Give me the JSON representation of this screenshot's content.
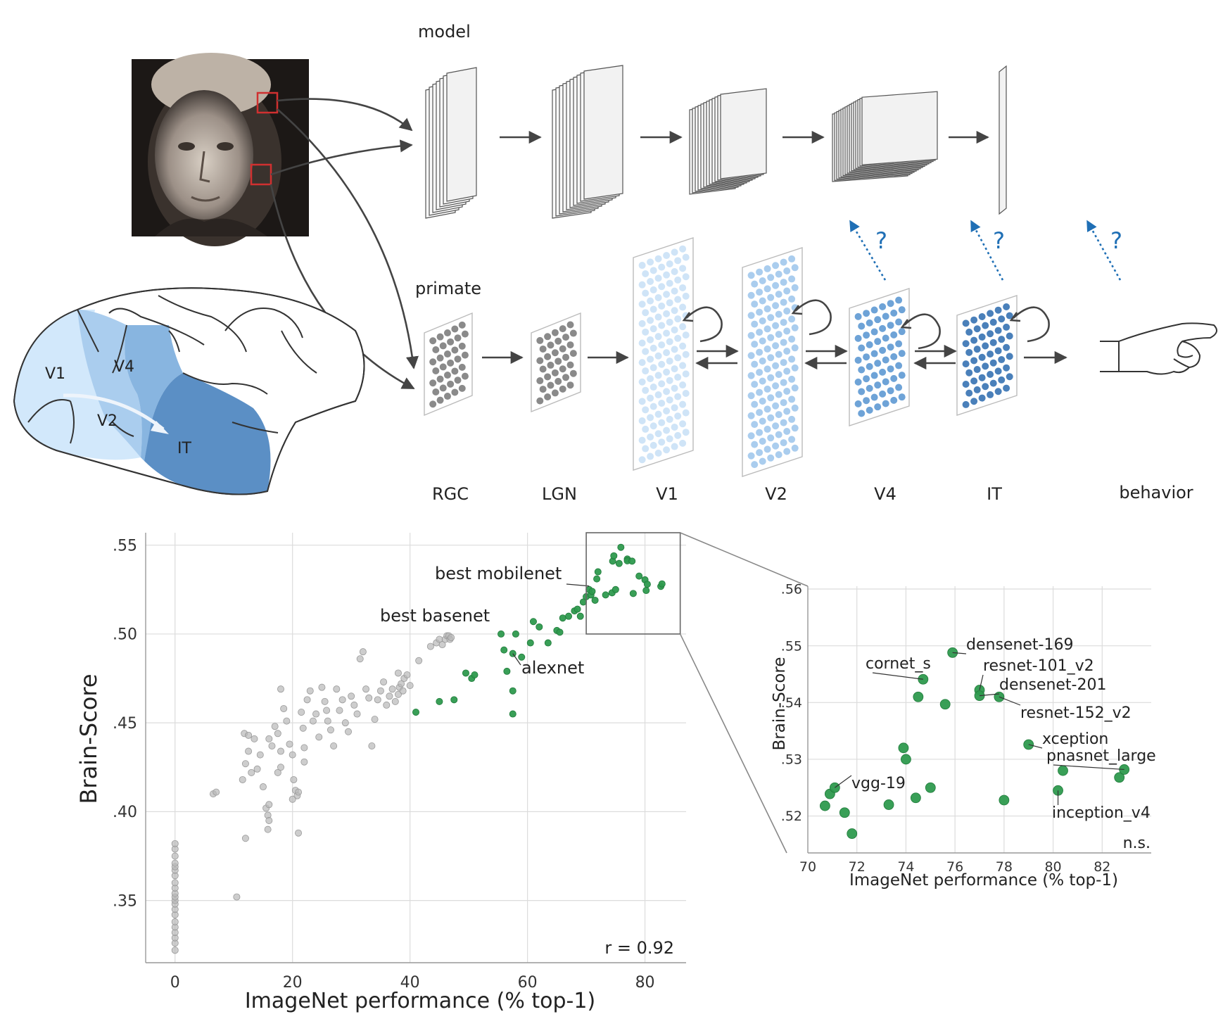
{
  "diagram": {
    "model_label": "model",
    "primate_label": "primate",
    "stages": [
      "RGC",
      "LGN",
      "V1",
      "V2",
      "V4",
      "IT",
      "behavior"
    ],
    "brain_labels": [
      "V1",
      "V4",
      "V2",
      "IT"
    ],
    "question_mark": "?",
    "colors": {
      "accent_blue": "#1f6fb5",
      "pale_blue": "#cfe4f7",
      "mid_blue": "#8fb9e0",
      "dark_blue": "#5a8ec4",
      "green": "#2e9a4e",
      "gray_point": "#b8b8b8",
      "red_box": "#d03030"
    }
  },
  "chart_data": [
    {
      "type": "scatter",
      "xlabel": "ImageNet performance (% top-1)",
      "ylabel": "Brain-Score",
      "xlim": [
        -5,
        87
      ],
      "ylim": [
        0.315,
        0.557
      ],
      "xticks": [
        0,
        20,
        40,
        60,
        80
      ],
      "xtick_labels": [
        "0",
        "20",
        "40",
        "60",
        "80"
      ],
      "yticks": [
        0.35,
        0.4,
        0.45,
        0.5,
        0.55
      ],
      "ytick_labels": [
        ".35",
        ".40",
        ".45",
        ".50",
        ".55"
      ],
      "grid": true,
      "stat_text": "r = 0.92",
      "annotations": [
        {
          "text": "best mobilenet",
          "x": 70.5,
          "y": 0.527
        },
        {
          "text": "best basenet",
          "x": 47,
          "y": 0.498
        },
        {
          "text": "alexnet",
          "x": 57.5,
          "y": 0.489
        }
      ],
      "series": [
        {
          "color": "#b8b8b8",
          "points": [
            [
              0,
              0.322
            ],
            [
              0,
              0.326
            ],
            [
              0,
              0.329
            ],
            [
              0,
              0.332
            ],
            [
              0,
              0.335
            ],
            [
              0,
              0.338
            ],
            [
              0,
              0.342
            ],
            [
              0,
              0.345
            ],
            [
              0,
              0.348
            ],
            [
              0,
              0.35
            ],
            [
              0,
              0.352
            ],
            [
              0,
              0.354
            ],
            [
              0,
              0.357
            ],
            [
              0,
              0.36
            ],
            [
              0,
              0.364
            ],
            [
              0,
              0.367
            ],
            [
              0,
              0.369
            ],
            [
              0,
              0.371
            ],
            [
              0,
              0.375
            ],
            [
              0,
              0.379
            ],
            [
              0,
              0.382
            ],
            [
              10.5,
              0.352
            ],
            [
              6.5,
              0.41
            ],
            [
              7,
              0.411
            ],
            [
              12,
              0.385
            ],
            [
              11.5,
              0.418
            ],
            [
              12,
              0.427
            ],
            [
              12.5,
              0.434
            ],
            [
              13,
              0.422
            ],
            [
              11.8,
              0.444
            ],
            [
              12.5,
              0.443
            ],
            [
              13.5,
              0.441
            ],
            [
              14.5,
              0.432
            ],
            [
              14,
              0.424
            ],
            [
              15,
              0.414
            ],
            [
              15.5,
              0.402
            ],
            [
              15.8,
              0.398
            ],
            [
              16,
              0.395
            ],
            [
              15.8,
              0.39
            ],
            [
              16,
              0.404
            ],
            [
              16.5,
              0.437
            ],
            [
              16,
              0.441
            ],
            [
              17,
              0.448
            ],
            [
              17.5,
              0.444
            ],
            [
              18,
              0.434
            ],
            [
              17.5,
              0.422
            ],
            [
              18,
              0.425
            ],
            [
              18,
              0.469
            ],
            [
              18.5,
              0.458
            ],
            [
              19,
              0.451
            ],
            [
              19.5,
              0.438
            ],
            [
              20,
              0.432
            ],
            [
              20.2,
              0.418
            ],
            [
              20.5,
              0.412
            ],
            [
              20.8,
              0.409
            ],
            [
              21,
              0.411
            ],
            [
              20,
              0.407
            ],
            [
              21,
              0.388
            ],
            [
              21.5,
              0.456
            ],
            [
              21.8,
              0.447
            ],
            [
              22,
              0.436
            ],
            [
              22,
              0.428
            ],
            [
              22.5,
              0.463
            ],
            [
              23,
              0.468
            ],
            [
              23.5,
              0.451
            ],
            [
              24,
              0.455
            ],
            [
              24.5,
              0.442
            ],
            [
              25,
              0.47
            ],
            [
              25.5,
              0.462
            ],
            [
              25.8,
              0.457
            ],
            [
              26,
              0.451
            ],
            [
              26.5,
              0.446
            ],
            [
              27,
              0.437
            ],
            [
              27.5,
              0.469
            ],
            [
              28,
              0.457
            ],
            [
              28.5,
              0.463
            ],
            [
              29,
              0.45
            ],
            [
              29.5,
              0.445
            ],
            [
              30,
              0.465
            ],
            [
              30.5,
              0.46
            ],
            [
              31,
              0.455
            ],
            [
              31.5,
              0.486
            ],
            [
              32,
              0.49
            ],
            [
              32.5,
              0.469
            ],
            [
              33,
              0.464
            ],
            [
              33.5,
              0.437
            ],
            [
              34,
              0.452
            ],
            [
              34.5,
              0.463
            ],
            [
              35,
              0.468
            ],
            [
              35.5,
              0.473
            ],
            [
              36,
              0.46
            ],
            [
              36.5,
              0.465
            ],
            [
              37,
              0.469
            ],
            [
              37.5,
              0.462
            ],
            [
              38,
              0.466
            ],
            [
              38.2,
              0.47
            ],
            [
              38.5,
              0.472
            ],
            [
              38.8,
              0.468
            ],
            [
              38,
              0.478
            ],
            [
              39,
              0.475
            ],
            [
              39.5,
              0.477
            ],
            [
              40,
              0.471
            ],
            [
              41.5,
              0.485
            ],
            [
              43.5,
              0.493
            ],
            [
              44.5,
              0.495
            ],
            [
              45,
              0.497
            ],
            [
              45.5,
              0.494
            ],
            [
              46,
              0.497
            ],
            [
              46.3,
              0.499
            ],
            [
              46.6,
              0.499
            ],
            [
              46.8,
              0.497
            ],
            [
              47,
              0.498
            ]
          ]
        },
        {
          "color": "#2e9a4e",
          "points": [
            [
              41,
              0.456
            ],
            [
              45,
              0.462
            ],
            [
              47.5,
              0.463
            ],
            [
              49.5,
              0.478
            ],
            [
              50.5,
              0.475
            ],
            [
              51,
              0.477
            ],
            [
              55.5,
              0.5
            ],
            [
              56,
              0.491
            ],
            [
              56.5,
              0.479
            ],
            [
              57.5,
              0.468
            ],
            [
              57.5,
              0.455
            ],
            [
              57.5,
              0.489
            ],
            [
              58,
              0.5
            ],
            [
              59,
              0.487
            ],
            [
              60.5,
              0.495
            ],
            [
              61,
              0.507
            ],
            [
              62,
              0.504
            ],
            [
              63.5,
              0.495
            ],
            [
              65,
              0.502
            ],
            [
              65.5,
              0.501
            ],
            [
              66,
              0.509
            ],
            [
              67,
              0.51
            ],
            [
              68,
              0.513
            ],
            [
              68.5,
              0.514
            ],
            [
              69,
              0.51
            ],
            [
              69.5,
              0.518
            ],
            [
              70,
              0.521
            ],
            [
              70.5,
              0.525
            ],
            [
              70.8,
              0.522
            ],
            [
              71,
              0.524
            ],
            [
              71.5,
              0.519
            ],
            [
              71.8,
              0.531
            ],
            [
              72,
              0.535
            ],
            [
              73.3,
              0.522
            ],
            [
              74.4,
              0.5232
            ],
            [
              74.5,
              0.541
            ],
            [
              74.7,
              0.544
            ],
            [
              75,
              0.525
            ],
            [
              75.6,
              0.5397
            ],
            [
              75.9,
              0.5488
            ],
            [
              77,
              0.5422
            ],
            [
              77,
              0.5412
            ],
            [
              77.8,
              0.541
            ],
            [
              78,
              0.5228
            ],
            [
              79,
              0.5326
            ],
            [
              80,
              0.5305
            ],
            [
              80.2,
              0.5245
            ],
            [
              80.4,
              0.528
            ],
            [
              82.7,
              0.5268
            ],
            [
              82.9,
              0.5282
            ]
          ]
        }
      ]
    },
    {
      "type": "scatter",
      "xlabel": "ImageNet performance (% top-1)",
      "ylabel": "Brain-Score",
      "xlim": [
        70,
        84
      ],
      "ylim": [
        0.5135,
        0.5605
      ],
      "xticks": [
        70,
        72,
        74,
        76,
        78,
        80,
        82
      ],
      "xtick_labels": [
        "70",
        "72",
        "74",
        "76",
        "78",
        "80",
        "82"
      ],
      "yticks": [
        0.52,
        0.53,
        0.54,
        0.55,
        0.56
      ],
      "ytick_labels": [
        ".52",
        ".53",
        ".54",
        ".55",
        ".56"
      ],
      "grid": true,
      "stat_text": "n.s.",
      "annotations": [
        {
          "text": "densenet-169",
          "x": 75.9,
          "y": 0.5488
        },
        {
          "text": "cornet_s",
          "x": 74.7,
          "y": 0.5441
        },
        {
          "text": "resnet-101_v2",
          "x": 77.0,
          "y": 0.5422
        },
        {
          "text": "densenet-201",
          "x": 77.0,
          "y": 0.5412
        },
        {
          "text": "resnet-152_v2",
          "x": 77.8,
          "y": 0.541
        },
        {
          "text": "xception",
          "x": 79.0,
          "y": 0.5326
        },
        {
          "text": "pnasnet_large",
          "x": 82.9,
          "y": 0.5282
        },
        {
          "text": "vgg-19",
          "x": 71.1,
          "y": 0.525
        },
        {
          "text": "inception_v4",
          "x": 80.2,
          "y": 0.5245
        }
      ],
      "series": [
        {
          "color": "#2e9a4e",
          "points": [
            [
              70.7,
              0.5218
            ],
            [
              70.9,
              0.5239
            ],
            [
              71.1,
              0.525
            ],
            [
              71.5,
              0.5206
            ],
            [
              71.8,
              0.5169
            ],
            [
              73.3,
              0.522
            ],
            [
              73.9,
              0.532
            ],
            [
              74.0,
              0.53
            ],
            [
              74.4,
              0.5232
            ],
            [
              74.5,
              0.541
            ],
            [
              74.7,
              0.5441
            ],
            [
              75.0,
              0.525
            ],
            [
              75.6,
              0.5397
            ],
            [
              75.9,
              0.5488
            ],
            [
              77.0,
              0.5422
            ],
            [
              77.0,
              0.5412
            ],
            [
              77.8,
              0.541
            ],
            [
              78.0,
              0.5228
            ],
            [
              79.0,
              0.5326
            ],
            [
              80.2,
              0.5245
            ],
            [
              80.4,
              0.528
            ],
            [
              82.7,
              0.5268
            ],
            [
              82.9,
              0.5282
            ]
          ]
        }
      ]
    }
  ]
}
